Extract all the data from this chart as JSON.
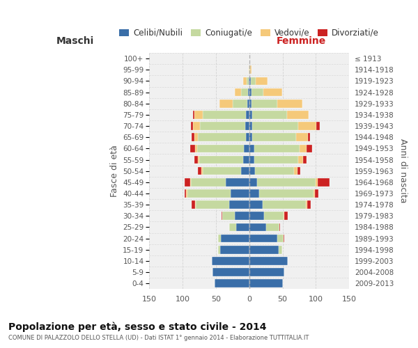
{
  "age_groups": [
    "0-4",
    "5-9",
    "10-14",
    "15-19",
    "20-24",
    "25-29",
    "30-34",
    "35-39",
    "40-44",
    "45-49",
    "50-54",
    "55-59",
    "60-64",
    "65-69",
    "70-74",
    "75-79",
    "80-84",
    "85-89",
    "90-94",
    "95-99",
    "100+"
  ],
  "birth_years": [
    "2009-2013",
    "2004-2008",
    "1999-2003",
    "1994-1998",
    "1989-1993",
    "1984-1988",
    "1979-1983",
    "1974-1978",
    "1969-1973",
    "1964-1968",
    "1959-1963",
    "1954-1958",
    "1949-1953",
    "1944-1948",
    "1939-1943",
    "1934-1938",
    "1929-1933",
    "1924-1928",
    "1919-1923",
    "1914-1918",
    "≤ 1913"
  ],
  "colors": {
    "celibi": "#3a6ea8",
    "coniugati": "#c5d9a0",
    "vedovi": "#f5c97a",
    "divorziati": "#cc2222"
  },
  "males_celibi": [
    52,
    55,
    56,
    44,
    42,
    20,
    22,
    30,
    28,
    35,
    12,
    9,
    8,
    5,
    6,
    5,
    3,
    2,
    1,
    0,
    0
  ],
  "males_coniugati": [
    0,
    0,
    0,
    3,
    5,
    10,
    18,
    50,
    65,
    52,
    58,
    66,
    70,
    72,
    68,
    65,
    22,
    10,
    3,
    0,
    0
  ],
  "males_vedovi": [
    0,
    0,
    0,
    0,
    0,
    0,
    0,
    1,
    2,
    2,
    2,
    2,
    3,
    5,
    10,
    12,
    20,
    10,
    5,
    1,
    0
  ],
  "males_divorziati": [
    0,
    0,
    0,
    0,
    0,
    0,
    1,
    5,
    2,
    8,
    5,
    5,
    8,
    4,
    3,
    2,
    0,
    0,
    0,
    0,
    0
  ],
  "females_nubili": [
    50,
    53,
    58,
    44,
    42,
    25,
    22,
    20,
    15,
    12,
    9,
    8,
    8,
    5,
    5,
    5,
    4,
    3,
    2,
    0,
    0
  ],
  "females_coniugate": [
    0,
    0,
    0,
    5,
    10,
    20,
    30,
    65,
    82,
    88,
    58,
    65,
    68,
    65,
    68,
    52,
    38,
    18,
    8,
    1,
    0
  ],
  "females_vedove": [
    0,
    0,
    0,
    0,
    0,
    0,
    1,
    2,
    2,
    3,
    5,
    8,
    10,
    18,
    28,
    32,
    38,
    28,
    18,
    2,
    0
  ],
  "females_divorziate": [
    0,
    0,
    0,
    0,
    1,
    1,
    5,
    5,
    5,
    18,
    5,
    5,
    8,
    3,
    5,
    0,
    0,
    0,
    0,
    0,
    0
  ],
  "xlim": 150,
  "title": "Popolazione per età, sesso e stato civile - 2014",
  "subtitle": "COMUNE DI PALAZZOLO DELLO STELLA (UD) - Dati ISTAT 1° gennaio 2014 - Elaborazione TUTTITALIA.IT",
  "xlabel_left": "Maschi",
  "xlabel_right": "Femmine",
  "ylabel": "Fasce di età",
  "ylabel_right": "Anni di nascita",
  "bg_color": "#f0f0f0",
  "grid_color": "#cccccc",
  "legend_labels": [
    "Celibi/Nubili",
    "Coniugati/e",
    "Vedovi/e",
    "Divorziati/e"
  ]
}
